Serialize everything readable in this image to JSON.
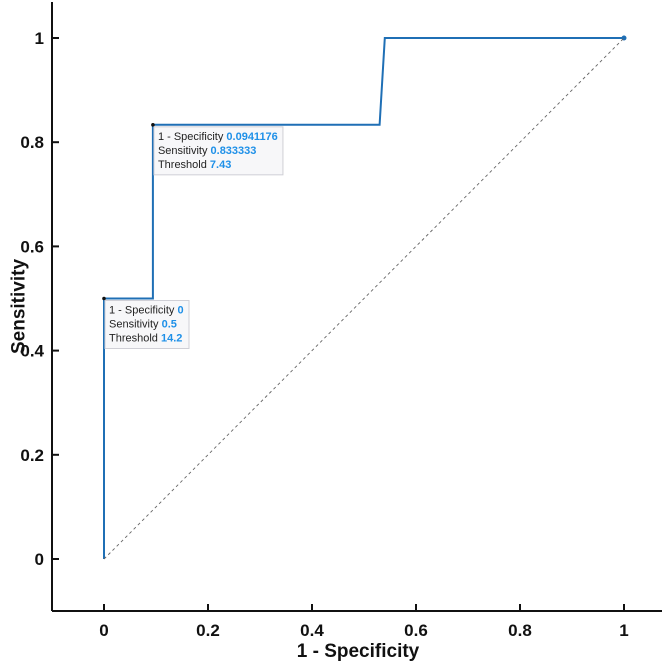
{
  "chart_data": {
    "type": "line",
    "xlabel": "1 - Specificity",
    "ylabel": "Sensitivity",
    "xlim": [
      -0.1,
      1.07
    ],
    "ylim": [
      -0.1,
      1.07
    ],
    "x_ticks": [
      "0",
      "0.2",
      "0.4",
      "0.6",
      "0.8",
      "1"
    ],
    "y_ticks": [
      "0",
      "0.2",
      "0.4",
      "0.6",
      "0.8",
      "1"
    ],
    "grid": false,
    "colors": {
      "roc": "#1f6fb5",
      "reference": "#666666",
      "value": "#1e90e8"
    },
    "series": [
      {
        "style": "step",
        "x": [
          0,
          0,
          0.0941176,
          0.0941176,
          0.53,
          0.54,
          1
        ],
        "y": [
          0,
          0.5,
          0.5,
          0.833333,
          0.833333,
          1,
          1
        ]
      },
      {
        "style": "dashed",
        "x": [
          0,
          1
        ],
        "y": [
          0,
          1
        ]
      }
    ],
    "annotations": [
      {
        "x": 0,
        "y": 0.5,
        "rows": [
          {
            "label": "1 - Specificity",
            "value": "0"
          },
          {
            "label": "Sensitivity",
            "value": "0.5"
          },
          {
            "label": "Threshold",
            "value": "14.2"
          }
        ]
      },
      {
        "x": 0.0941176,
        "y": 0.833333,
        "rows": [
          {
            "label": "1 - Specificity",
            "value": "0.0941176"
          },
          {
            "label": "Sensitivity",
            "value": "0.833333"
          },
          {
            "label": "Threshold",
            "value": "7.43"
          }
        ]
      }
    ]
  }
}
